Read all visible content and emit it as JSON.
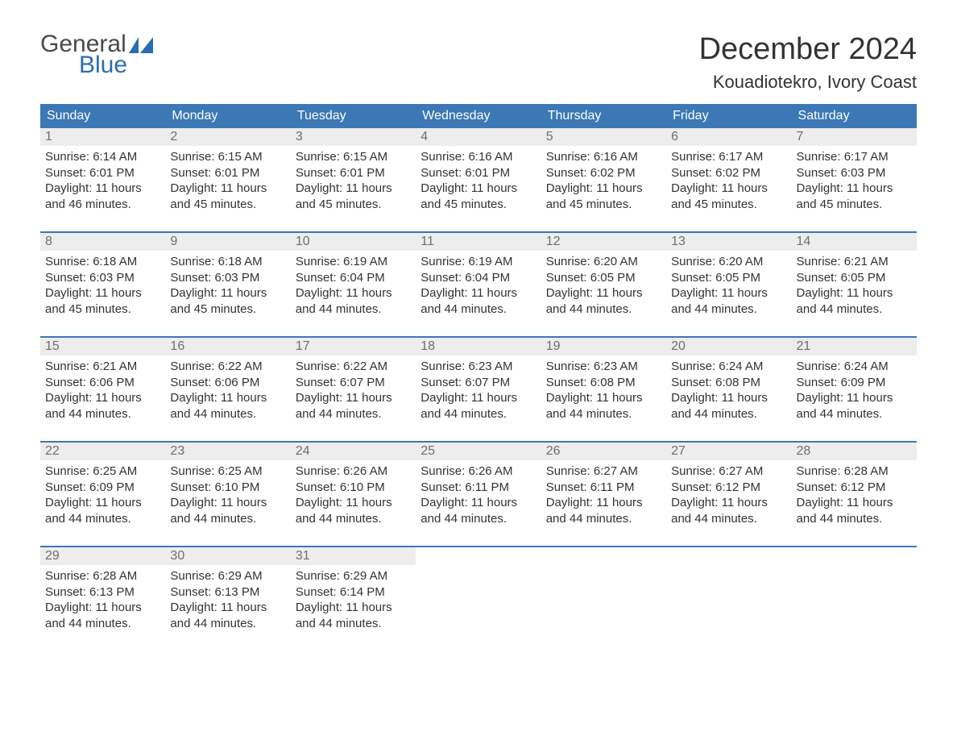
{
  "logo": {
    "text1": "General",
    "text2": "Blue",
    "flag_color": "#2a6db0"
  },
  "header": {
    "month_title": "December 2024",
    "location": "Kouadiotekro, Ivory Coast"
  },
  "colors": {
    "header_bg": "#3b78b5",
    "header_text": "#ffffff",
    "daynum_bg": "#ededed",
    "daynum_text": "#6e6e6e",
    "body_text": "#333333",
    "week_border": "#3b78b5"
  },
  "weekdays": [
    "Sunday",
    "Monday",
    "Tuesday",
    "Wednesday",
    "Thursday",
    "Friday",
    "Saturday"
  ],
  "weeks": [
    [
      {
        "n": "1",
        "sunrise": "Sunrise: 6:14 AM",
        "sunset": "Sunset: 6:01 PM",
        "dl1": "Daylight: 11 hours",
        "dl2": "and 46 minutes."
      },
      {
        "n": "2",
        "sunrise": "Sunrise: 6:15 AM",
        "sunset": "Sunset: 6:01 PM",
        "dl1": "Daylight: 11 hours",
        "dl2": "and 45 minutes."
      },
      {
        "n": "3",
        "sunrise": "Sunrise: 6:15 AM",
        "sunset": "Sunset: 6:01 PM",
        "dl1": "Daylight: 11 hours",
        "dl2": "and 45 minutes."
      },
      {
        "n": "4",
        "sunrise": "Sunrise: 6:16 AM",
        "sunset": "Sunset: 6:01 PM",
        "dl1": "Daylight: 11 hours",
        "dl2": "and 45 minutes."
      },
      {
        "n": "5",
        "sunrise": "Sunrise: 6:16 AM",
        "sunset": "Sunset: 6:02 PM",
        "dl1": "Daylight: 11 hours",
        "dl2": "and 45 minutes."
      },
      {
        "n": "6",
        "sunrise": "Sunrise: 6:17 AM",
        "sunset": "Sunset: 6:02 PM",
        "dl1": "Daylight: 11 hours",
        "dl2": "and 45 minutes."
      },
      {
        "n": "7",
        "sunrise": "Sunrise: 6:17 AM",
        "sunset": "Sunset: 6:03 PM",
        "dl1": "Daylight: 11 hours",
        "dl2": "and 45 minutes."
      }
    ],
    [
      {
        "n": "8",
        "sunrise": "Sunrise: 6:18 AM",
        "sunset": "Sunset: 6:03 PM",
        "dl1": "Daylight: 11 hours",
        "dl2": "and 45 minutes."
      },
      {
        "n": "9",
        "sunrise": "Sunrise: 6:18 AM",
        "sunset": "Sunset: 6:03 PM",
        "dl1": "Daylight: 11 hours",
        "dl2": "and 45 minutes."
      },
      {
        "n": "10",
        "sunrise": "Sunrise: 6:19 AM",
        "sunset": "Sunset: 6:04 PM",
        "dl1": "Daylight: 11 hours",
        "dl2": "and 44 minutes."
      },
      {
        "n": "11",
        "sunrise": "Sunrise: 6:19 AM",
        "sunset": "Sunset: 6:04 PM",
        "dl1": "Daylight: 11 hours",
        "dl2": "and 44 minutes."
      },
      {
        "n": "12",
        "sunrise": "Sunrise: 6:20 AM",
        "sunset": "Sunset: 6:05 PM",
        "dl1": "Daylight: 11 hours",
        "dl2": "and 44 minutes."
      },
      {
        "n": "13",
        "sunrise": "Sunrise: 6:20 AM",
        "sunset": "Sunset: 6:05 PM",
        "dl1": "Daylight: 11 hours",
        "dl2": "and 44 minutes."
      },
      {
        "n": "14",
        "sunrise": "Sunrise: 6:21 AM",
        "sunset": "Sunset: 6:05 PM",
        "dl1": "Daylight: 11 hours",
        "dl2": "and 44 minutes."
      }
    ],
    [
      {
        "n": "15",
        "sunrise": "Sunrise: 6:21 AM",
        "sunset": "Sunset: 6:06 PM",
        "dl1": "Daylight: 11 hours",
        "dl2": "and 44 minutes."
      },
      {
        "n": "16",
        "sunrise": "Sunrise: 6:22 AM",
        "sunset": "Sunset: 6:06 PM",
        "dl1": "Daylight: 11 hours",
        "dl2": "and 44 minutes."
      },
      {
        "n": "17",
        "sunrise": "Sunrise: 6:22 AM",
        "sunset": "Sunset: 6:07 PM",
        "dl1": "Daylight: 11 hours",
        "dl2": "and 44 minutes."
      },
      {
        "n": "18",
        "sunrise": "Sunrise: 6:23 AM",
        "sunset": "Sunset: 6:07 PM",
        "dl1": "Daylight: 11 hours",
        "dl2": "and 44 minutes."
      },
      {
        "n": "19",
        "sunrise": "Sunrise: 6:23 AM",
        "sunset": "Sunset: 6:08 PM",
        "dl1": "Daylight: 11 hours",
        "dl2": "and 44 minutes."
      },
      {
        "n": "20",
        "sunrise": "Sunrise: 6:24 AM",
        "sunset": "Sunset: 6:08 PM",
        "dl1": "Daylight: 11 hours",
        "dl2": "and 44 minutes."
      },
      {
        "n": "21",
        "sunrise": "Sunrise: 6:24 AM",
        "sunset": "Sunset: 6:09 PM",
        "dl1": "Daylight: 11 hours",
        "dl2": "and 44 minutes."
      }
    ],
    [
      {
        "n": "22",
        "sunrise": "Sunrise: 6:25 AM",
        "sunset": "Sunset: 6:09 PM",
        "dl1": "Daylight: 11 hours",
        "dl2": "and 44 minutes."
      },
      {
        "n": "23",
        "sunrise": "Sunrise: 6:25 AM",
        "sunset": "Sunset: 6:10 PM",
        "dl1": "Daylight: 11 hours",
        "dl2": "and 44 minutes."
      },
      {
        "n": "24",
        "sunrise": "Sunrise: 6:26 AM",
        "sunset": "Sunset: 6:10 PM",
        "dl1": "Daylight: 11 hours",
        "dl2": "and 44 minutes."
      },
      {
        "n": "25",
        "sunrise": "Sunrise: 6:26 AM",
        "sunset": "Sunset: 6:11 PM",
        "dl1": "Daylight: 11 hours",
        "dl2": "and 44 minutes."
      },
      {
        "n": "26",
        "sunrise": "Sunrise: 6:27 AM",
        "sunset": "Sunset: 6:11 PM",
        "dl1": "Daylight: 11 hours",
        "dl2": "and 44 minutes."
      },
      {
        "n": "27",
        "sunrise": "Sunrise: 6:27 AM",
        "sunset": "Sunset: 6:12 PM",
        "dl1": "Daylight: 11 hours",
        "dl2": "and 44 minutes."
      },
      {
        "n": "28",
        "sunrise": "Sunrise: 6:28 AM",
        "sunset": "Sunset: 6:12 PM",
        "dl1": "Daylight: 11 hours",
        "dl2": "and 44 minutes."
      }
    ],
    [
      {
        "n": "29",
        "sunrise": "Sunrise: 6:28 AM",
        "sunset": "Sunset: 6:13 PM",
        "dl1": "Daylight: 11 hours",
        "dl2": "and 44 minutes."
      },
      {
        "n": "30",
        "sunrise": "Sunrise: 6:29 AM",
        "sunset": "Sunset: 6:13 PM",
        "dl1": "Daylight: 11 hours",
        "dl2": "and 44 minutes."
      },
      {
        "n": "31",
        "sunrise": "Sunrise: 6:29 AM",
        "sunset": "Sunset: 6:14 PM",
        "dl1": "Daylight: 11 hours",
        "dl2": "and 44 minutes."
      },
      null,
      null,
      null,
      null
    ]
  ]
}
